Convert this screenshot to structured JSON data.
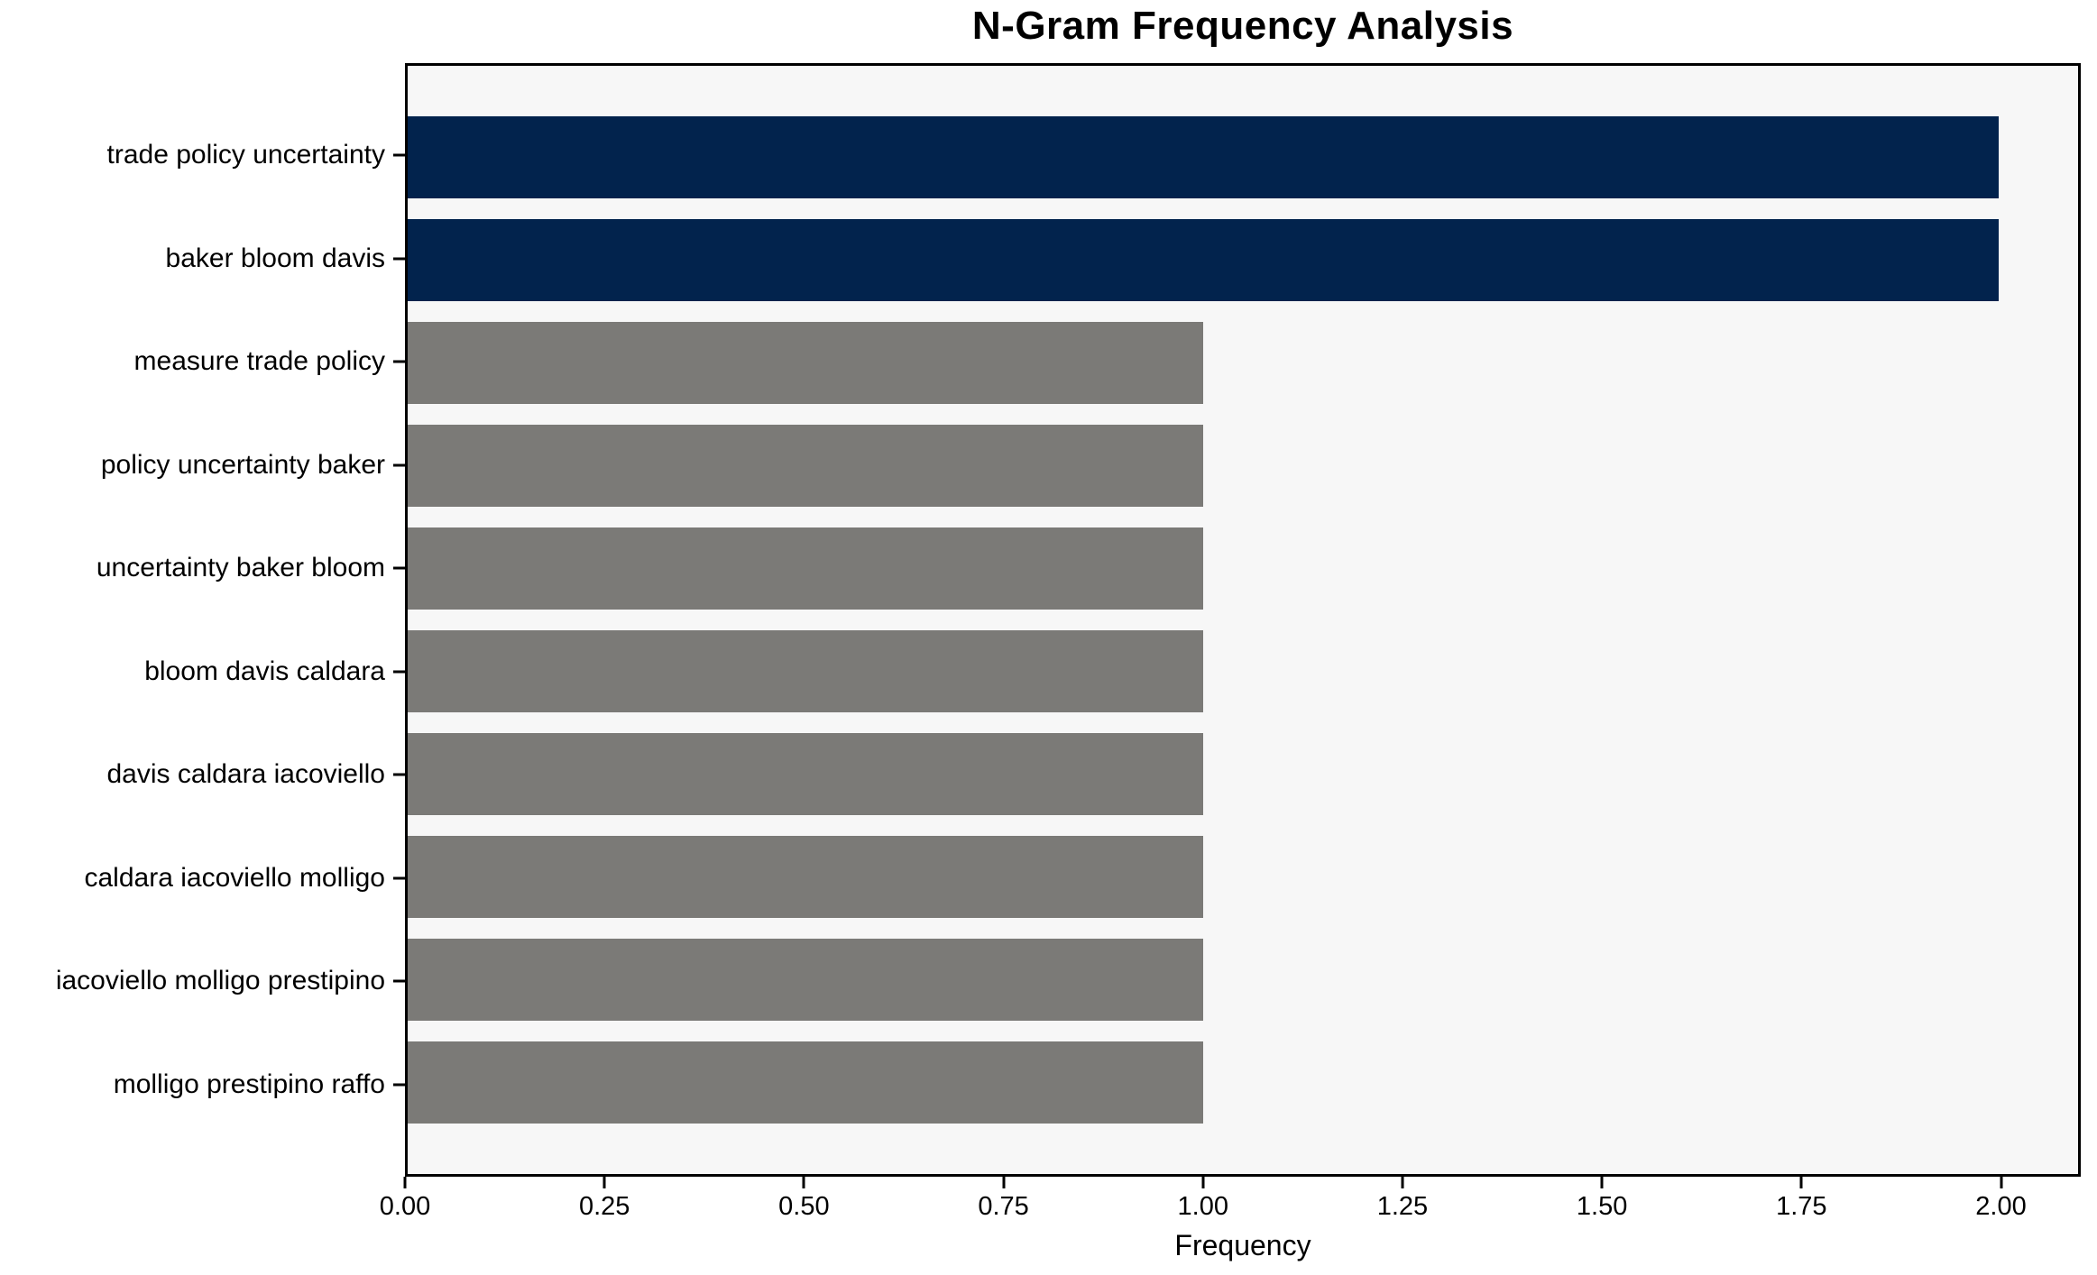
{
  "chart_data": {
    "type": "bar",
    "orientation": "horizontal",
    "title": "N-Gram Frequency Analysis",
    "xlabel": "Frequency",
    "ylabel": "",
    "categories": [
      "trade policy uncertainty",
      "baker bloom davis",
      "measure trade policy",
      "policy uncertainty baker",
      "uncertainty baker bloom",
      "bloom davis caldara",
      "davis caldara iacoviello",
      "caldara iacoviello molligo",
      "iacoviello molligo prestipino",
      "molligo prestipino raffo"
    ],
    "values": [
      2,
      2,
      1,
      1,
      1,
      1,
      1,
      1,
      1,
      1
    ],
    "bar_colors": [
      "#02234d",
      "#02234d",
      "#7b7a77",
      "#7b7a77",
      "#7b7a77",
      "#7b7a77",
      "#7b7a77",
      "#7b7a77",
      "#7b7a77",
      "#7b7a77"
    ],
    "xlim": [
      0,
      2.1
    ],
    "xtick_labels": [
      "0.00",
      "0.25",
      "0.50",
      "0.75",
      "1.00",
      "1.25",
      "1.50",
      "1.75",
      "2.00"
    ],
    "xtick_values": [
      0,
      0.25,
      0.5,
      0.75,
      1.0,
      1.25,
      1.5,
      1.75,
      2.0
    ],
    "grid": false,
    "legend": null,
    "colors": {
      "highlight_bar": "#02234d",
      "default_bar": "#7b7a77",
      "plot_background": "#f7f7f7",
      "figure_background": "#ffffff",
      "spine": "#000000",
      "text": "#000000"
    }
  }
}
